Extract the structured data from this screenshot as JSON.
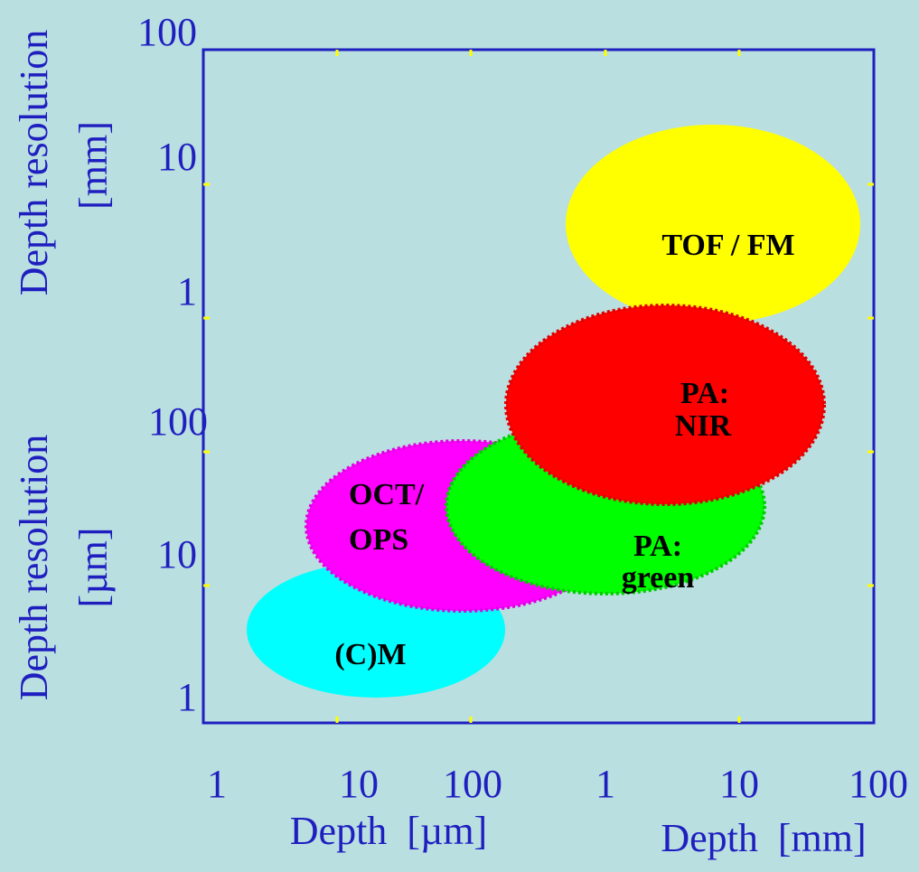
{
  "y_axis": {
    "upper_title": [
      "Depth resolution",
      "[mm]"
    ],
    "lower_title": [
      "Depth resolution",
      "[µm]"
    ],
    "upper_ticks": [
      "100",
      "10",
      "1"
    ],
    "lower_ticks": [
      "100",
      "10",
      "1"
    ]
  },
  "x_axis": {
    "left_title": "Depth  [µm]",
    "right_title": "Depth  [mm]",
    "left_ticks": [
      "1",
      "10",
      "100"
    ],
    "right_ticks": [
      "1",
      "10",
      "100"
    ]
  },
  "regions": [
    {
      "lines": [
        "TOF / FM"
      ]
    },
    {
      "lines": [
        "(C)M"
      ]
    },
    {
      "lines": [
        "OCT/",
        "OPS"
      ]
    },
    {
      "lines": [
        "PA:",
        "green"
      ]
    },
    {
      "lines": [
        "PA:",
        "NIR"
      ]
    }
  ]
}
